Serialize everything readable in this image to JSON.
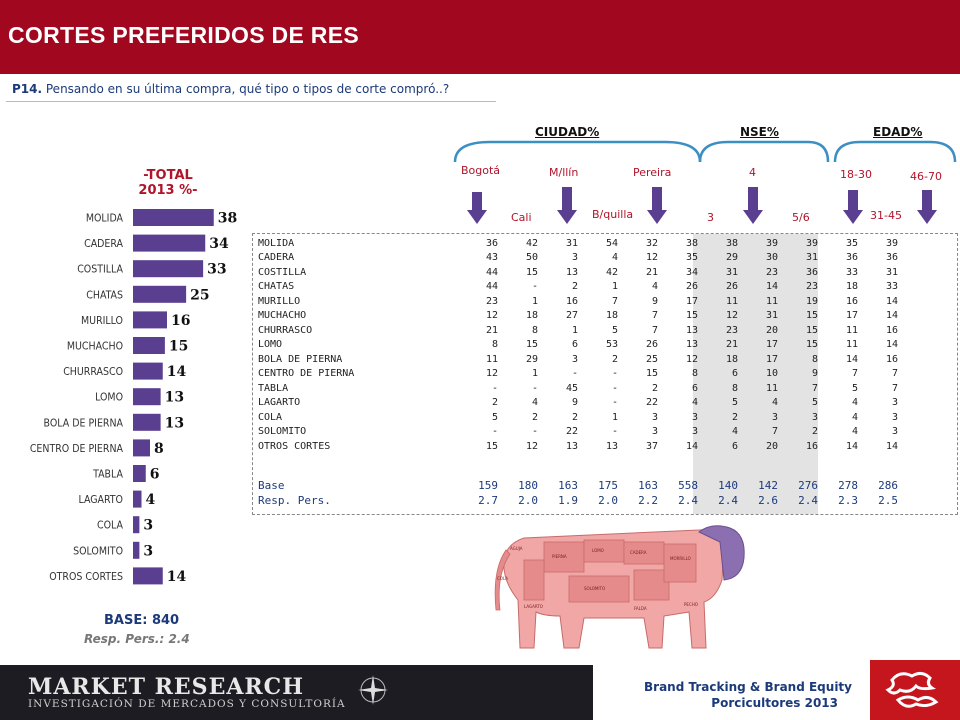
{
  "header": {
    "title": "CORTES PREFERIDOS DE RES"
  },
  "question": {
    "code": "P14.",
    "text": " Pensando en su última compra, qué tipo o tipos de corte compró..?"
  },
  "total": {
    "line1": "-TOTAL",
    "line2": "2013 %-"
  },
  "base_label": "BASE:  840",
  "resp_label": "Resp. Pers.:  2.4",
  "group_heads": [
    "CIUDAD%",
    "NSE%",
    "EDAD%"
  ],
  "col_heads": {
    "bogota": "Bogotá",
    "cali": "Cali",
    "medellin": "M/llín",
    "barranquilla": "B/quilla",
    "pereira": "Pereira",
    "nse3": "3",
    "nse4": "4",
    "nse56": "5/6",
    "age1830": "18-30",
    "age3145": "31-45",
    "age4670": "46-70"
  },
  "table": {
    "rows": [
      {
        "label": "MOLIDA",
        "values": [
          "36",
          "42",
          "31",
          "54",
          "32",
          "38",
          "38",
          "39",
          "39",
          "35",
          "39"
        ]
      },
      {
        "label": "CADERA",
        "values": [
          "43",
          "50",
          "3",
          "4",
          "12",
          "35",
          "29",
          "30",
          "31",
          "36",
          "36"
        ]
      },
      {
        "label": "COSTILLA",
        "values": [
          "44",
          "15",
          "13",
          "42",
          "21",
          "34",
          "31",
          "23",
          "36",
          "33",
          "31"
        ]
      },
      {
        "label": "CHATAS",
        "values": [
          "44",
          "-",
          "2",
          "1",
          "4",
          "26",
          "26",
          "14",
          "23",
          "18",
          "33"
        ]
      },
      {
        "label": "MURILLO",
        "values": [
          "23",
          "1",
          "16",
          "7",
          "9",
          "17",
          "11",
          "11",
          "19",
          "16",
          "14"
        ]
      },
      {
        "label": "MUCHACHO",
        "values": [
          "12",
          "18",
          "27",
          "18",
          "7",
          "15",
          "12",
          "31",
          "15",
          "17",
          "14"
        ]
      },
      {
        "label": "CHURRASCO",
        "values": [
          "21",
          "8",
          "1",
          "5",
          "7",
          "13",
          "23",
          "20",
          "15",
          "11",
          "16"
        ]
      },
      {
        "label": "LOMO",
        "values": [
          "8",
          "15",
          "6",
          "53",
          "26",
          "13",
          "21",
          "17",
          "15",
          "11",
          "14"
        ]
      },
      {
        "label": "BOLA DE PIERNA",
        "values": [
          "11",
          "29",
          "3",
          "2",
          "25",
          "12",
          "18",
          "17",
          "8",
          "14",
          "16"
        ]
      },
      {
        "label": "CENTRO DE PIERNA",
        "values": [
          "12",
          "1",
          "-",
          "-",
          "15",
          "8",
          "6",
          "10",
          "9",
          "7",
          "7"
        ]
      },
      {
        "label": "TABLA",
        "values": [
          "-",
          "-",
          "45",
          "-",
          "2",
          "6",
          "8",
          "11",
          "7",
          "5",
          "7"
        ]
      },
      {
        "label": "LAGARTO",
        "values": [
          "2",
          "4",
          "9",
          "-",
          "22",
          "4",
          "5",
          "4",
          "5",
          "4",
          "3"
        ]
      },
      {
        "label": "COLA",
        "values": [
          "5",
          "2",
          "2",
          "1",
          "3",
          "3",
          "2",
          "3",
          "3",
          "4",
          "3"
        ]
      },
      {
        "label": "SOLOMITO",
        "values": [
          "-",
          "-",
          "22",
          "-",
          "3",
          "3",
          "4",
          "7",
          "2",
          "4",
          "3"
        ]
      },
      {
        "label": "OTROS CORTES",
        "values": [
          "15",
          "12",
          "13",
          "13",
          "37",
          "14",
          "6",
          "20",
          "16",
          "14",
          "14"
        ]
      }
    ],
    "base": {
      "label": "Base",
      "values": [
        "159",
        "180",
        "163",
        "175",
        "163",
        "558",
        "140",
        "142",
        "276",
        "278",
        "286"
      ]
    },
    "resp": {
      "label": "Resp. Pers.",
      "values": [
        "2.7",
        "2.0",
        "1.9",
        "2.0",
        "2.2",
        "2.4",
        "2.4",
        "2.6",
        "2.4",
        "2.3",
        "2.5"
      ]
    }
  },
  "cow_labels": [
    "AGUJA",
    "COLA",
    "LAGARTO",
    "PECHO",
    "FALDA",
    "LOMO",
    "PIERNA",
    "MORRILLO",
    "CADERA",
    "SOLOMITO"
  ],
  "footer": {
    "logo_line1": "MARKET RESEARCH",
    "logo_line2": "INVESTIGACIÓN DE MERCADOS Y CONSULTORÍA",
    "brand_line1": "Brand Tracking & Brand Equity",
    "brand_line2": "Porcicultores 2013"
  },
  "colors": {
    "bar": "#5a3e8f",
    "header": "#a1071f",
    "accent_red": "#b0142a",
    "navy": "#1c3a7a",
    "arrow": "#5a3e8f"
  },
  "chart_data": {
    "type": "bar",
    "orientation": "horizontal",
    "title": "-TOTAL 2013 %-",
    "categories": [
      "MOLIDA",
      "CADERA",
      "COSTILLA",
      "CHATAS",
      "MURILLO",
      "MUCHACHO",
      "CHURRASCO",
      "LOMO",
      "BOLA DE PIERNA",
      "CENTRO DE PIERNA",
      "TABLA",
      "LAGARTO",
      "COLA",
      "SOLOMITO",
      "OTROS CORTES"
    ],
    "values": [
      38,
      34,
      33,
      25,
      16,
      15,
      14,
      13,
      13,
      8,
      6,
      4,
      3,
      3,
      14
    ],
    "xlim": [
      0,
      40
    ],
    "grid": false,
    "legend": "none"
  }
}
